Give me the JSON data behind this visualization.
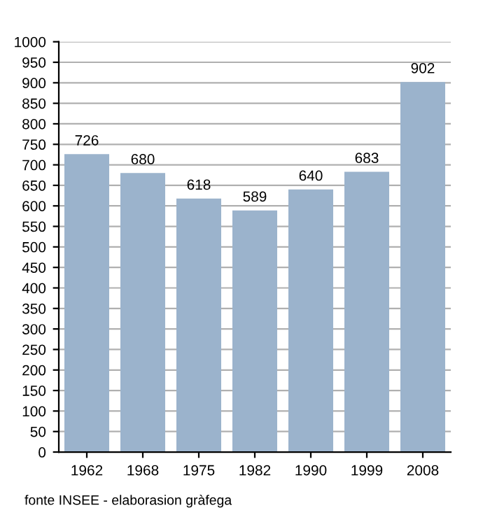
{
  "chart_data": {
    "type": "bar",
    "categories": [
      "1962",
      "1968",
      "1975",
      "1982",
      "1990",
      "1999",
      "2008"
    ],
    "values": [
      726,
      680,
      618,
      589,
      640,
      683,
      902
    ],
    "color": "#9bb3cc",
    "data_labels": true,
    "ylim": [
      0,
      1000
    ],
    "yticks": [
      0,
      50,
      100,
      150,
      200,
      250,
      300,
      350,
      400,
      450,
      500,
      550,
      600,
      650,
      700,
      750,
      800,
      850,
      900,
      950,
      1000
    ],
    "grid": "y",
    "annotations": [
      "fonte INSEE - elaborasion gràfega"
    ]
  }
}
